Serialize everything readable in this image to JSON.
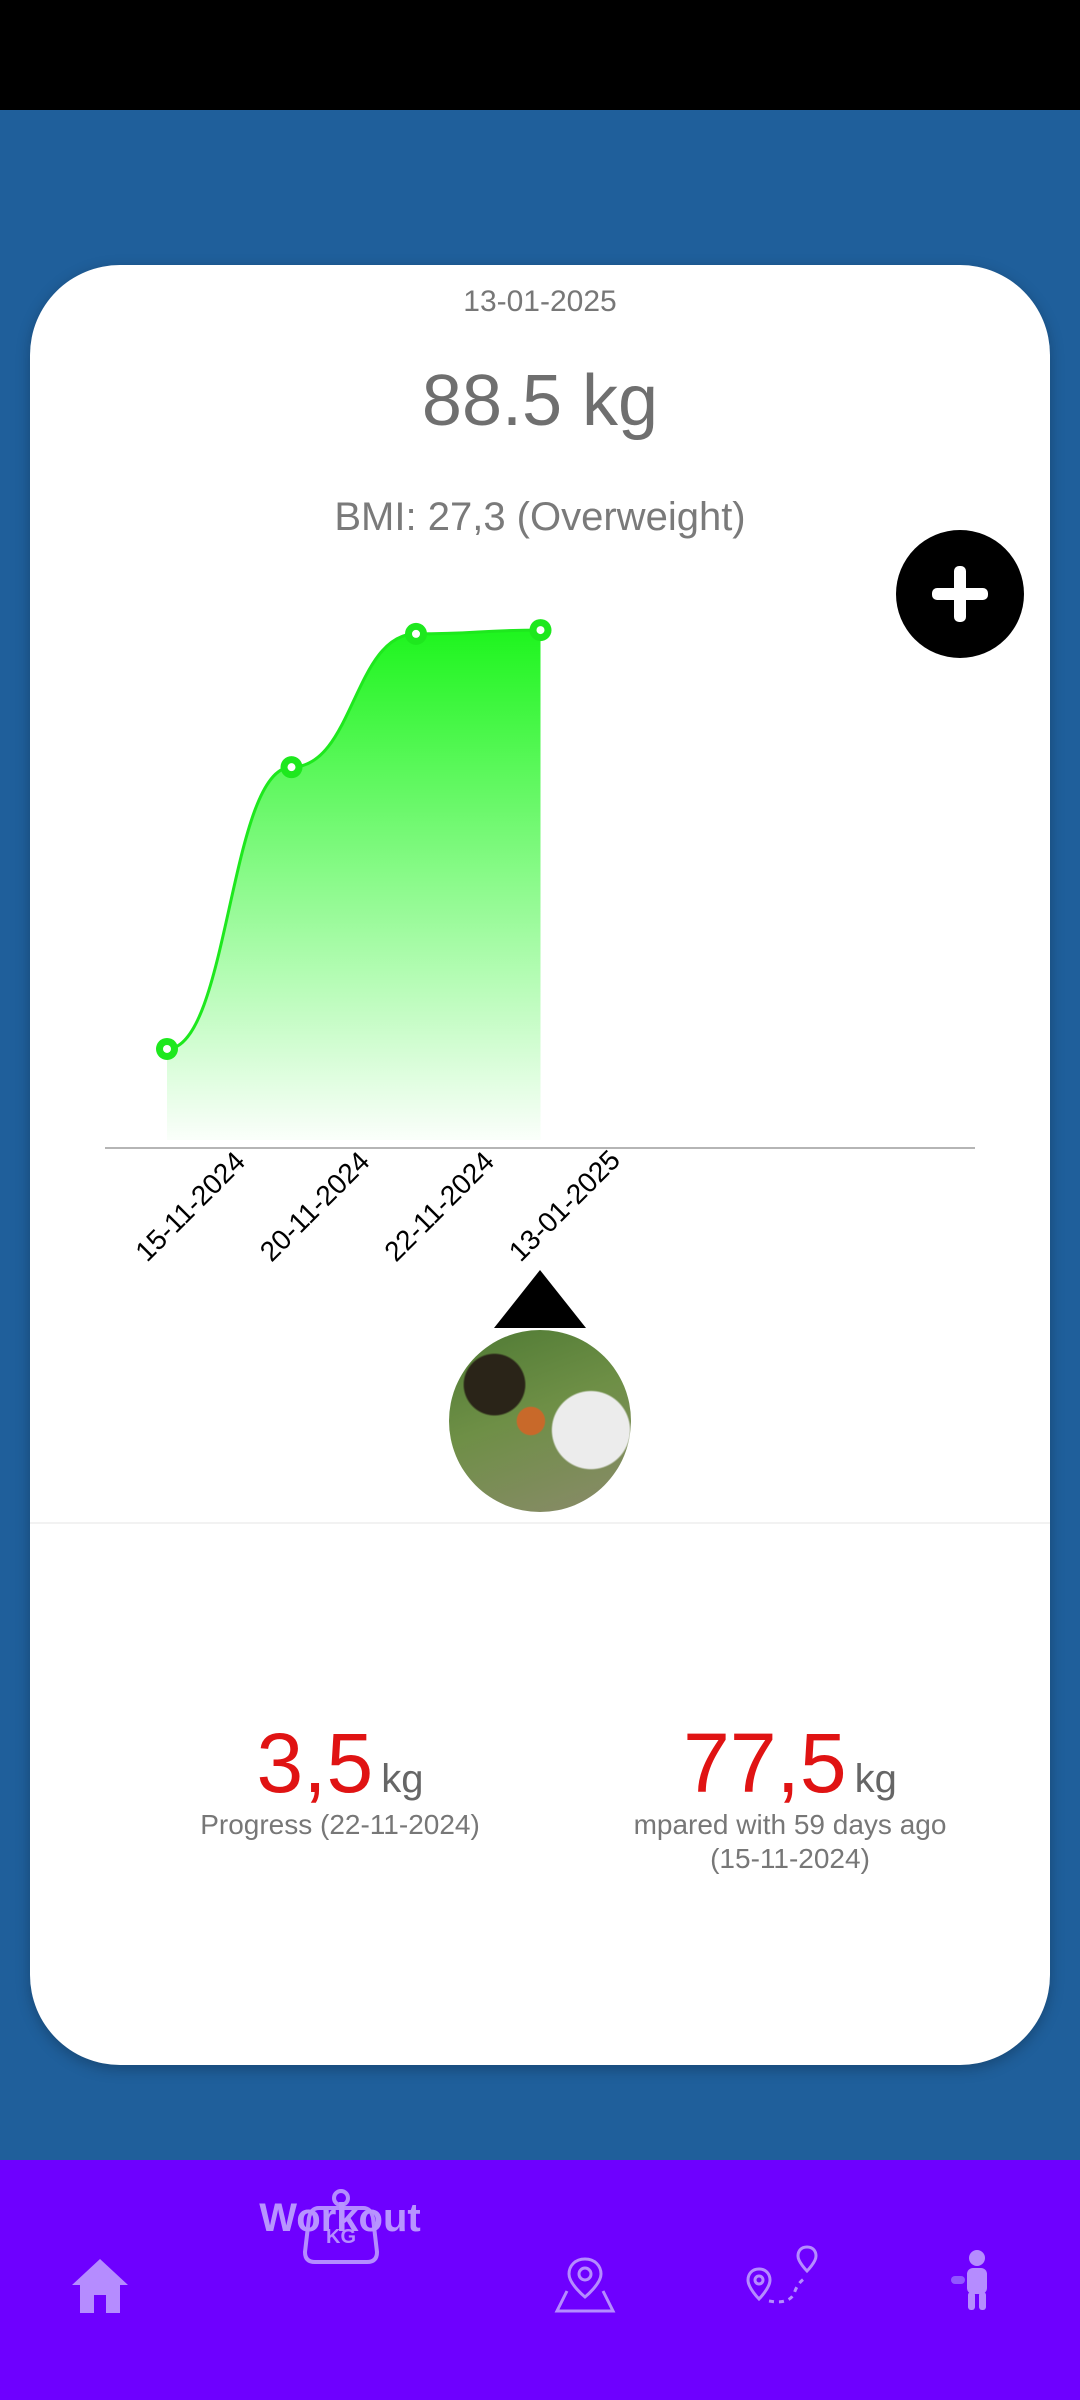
{
  "header": {
    "date": "13-01-2025",
    "weight": "88.5 kg",
    "bmi": "BMI: 27,3 (Overweight)"
  },
  "add_button_icon": "plus-icon",
  "chart_data": {
    "type": "area",
    "x": [
      "15-11-2024",
      "20-11-2024",
      "22-11-2024",
      "13-01-2025"
    ],
    "values": [
      77.5,
      84.9,
      88.4,
      88.5
    ],
    "ylim": [
      77.0,
      89.5
    ],
    "color": "#1ee81e",
    "grid": false,
    "legend": "none"
  },
  "stats": {
    "progress": {
      "value": "3,5",
      "unit": "kg",
      "label": "Progress (22-11-2024)"
    },
    "compared": {
      "value": "77,5",
      "unit": "kg",
      "label": "mpared with 59 days ago\n(15-11-2024)"
    }
  },
  "nav": {
    "items": [
      {
        "icon": "home-icon"
      },
      {
        "icon": "weight-kg-icon",
        "label": "Workout"
      },
      {
        "icon": "map-pin-icon"
      },
      {
        "icon": "route-icon"
      },
      {
        "icon": "person-icon"
      }
    ]
  },
  "colors": {
    "background": "#1f5f9b",
    "nav": "#6e00ff",
    "accent_red": "#e01313"
  }
}
